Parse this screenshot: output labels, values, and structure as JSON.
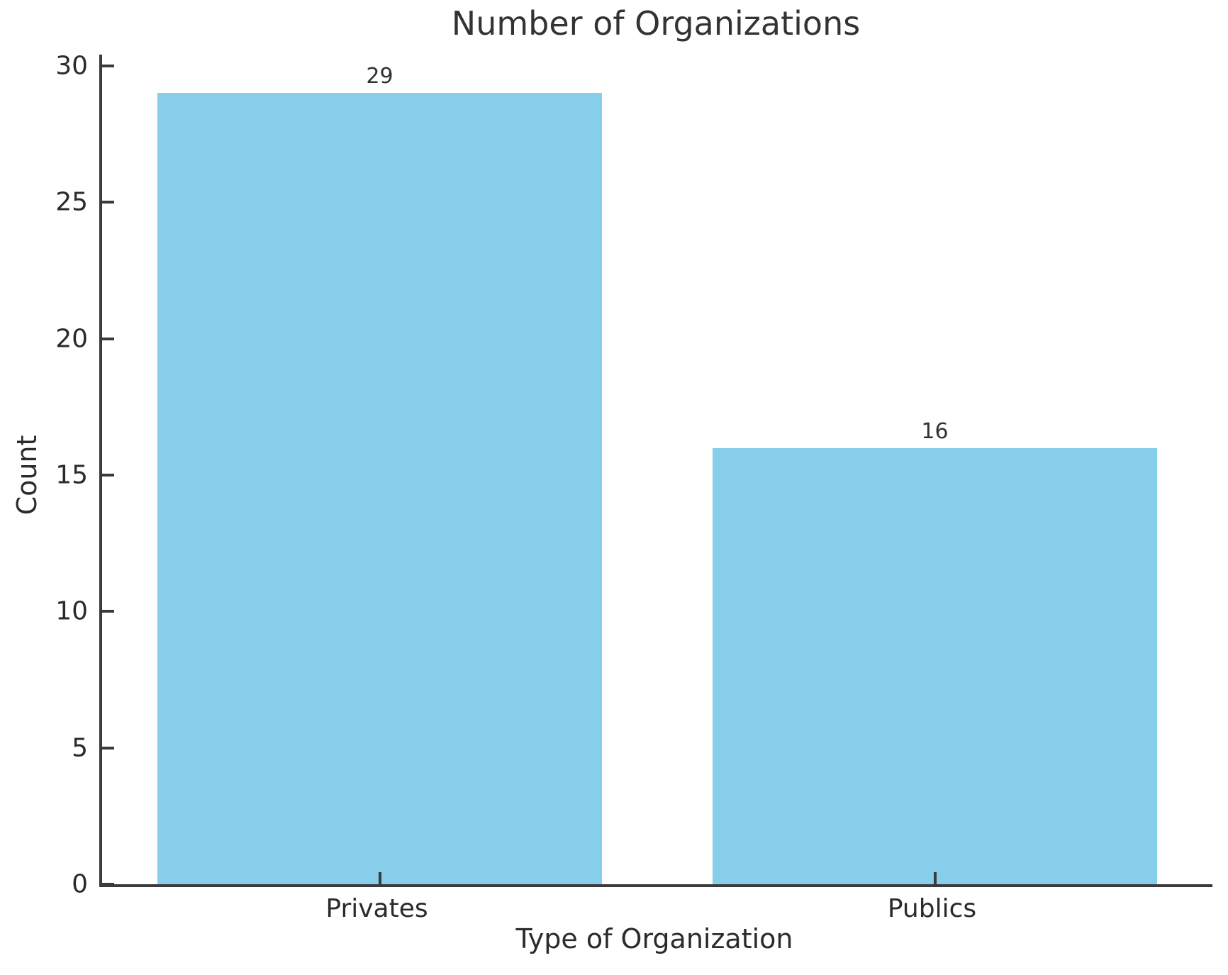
{
  "chart_data": {
    "type": "bar",
    "title": "Number of Organizations",
    "xlabel": "Type of Organization",
    "ylabel": "Count",
    "categories": [
      "Privates",
      "Publics"
    ],
    "values": [
      29,
      16
    ],
    "bar_labels": [
      "29",
      "16"
    ],
    "ylim": [
      0,
      30
    ],
    "yticks": [
      0,
      5,
      10,
      15,
      20,
      25,
      30
    ],
    "bar_color": "#87CEEB",
    "axis_color": "#3a3a3a",
    "text_color": "#2b2b2b",
    "grid": "off",
    "legend": "none",
    "bar_width_fraction": 0.8
  }
}
